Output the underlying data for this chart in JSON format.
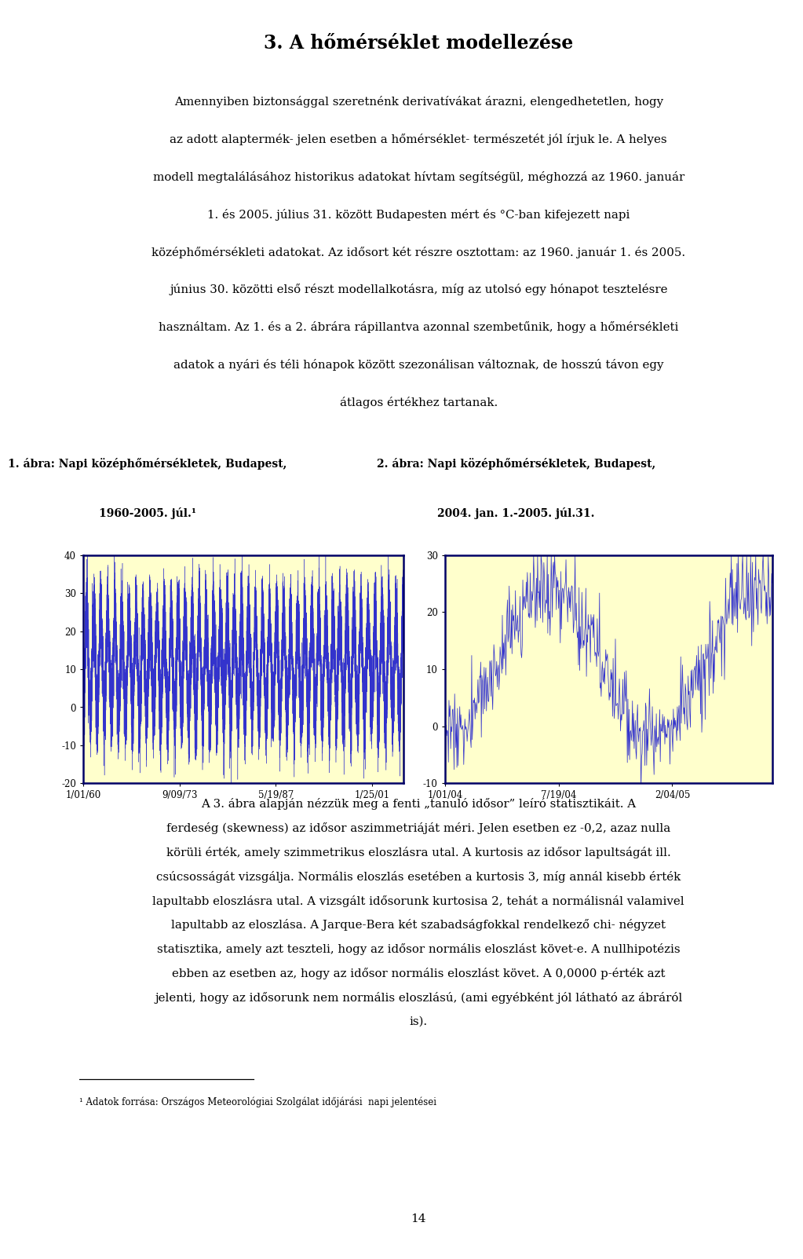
{
  "title": "3. A hőmérséklet modellezése",
  "fig1_title_line1": "1. ábra: Napi középhőmérsékletek, Budapest,",
  "fig1_title_line2": "1960-2005. júl.¹",
  "fig2_title_line1": "2. ábra: Napi középhőmérsékletek, Budapest,",
  "fig2_title_line2": "2004. jan. 1.-2005. júl.31.",
  "chart1_ylim": [
    -20,
    40
  ],
  "chart1_yticks": [
    -20,
    -10,
    0,
    10,
    20,
    30,
    40
  ],
  "chart1_xtick_labels": [
    "1/01/60",
    "9/09/73",
    "5/19/87",
    "1/25/01"
  ],
  "chart2_ylim": [
    -10,
    30
  ],
  "chart2_yticks": [
    -10,
    0,
    10,
    20,
    30
  ],
  "chart2_xtick_labels": [
    "1/01/04",
    "7/19/04",
    "2/04/05"
  ],
  "body1": [
    "Amennyiben biztonsággal szeretnénk derivatívákat árazni, elengedhetetlen, hogy",
    "az adott alaptermék- jelen esetben a hőmérséklet- természetét jól írjuk le. A helyes",
    "modell megtalálásához historikus adatokat hívtam segítségül, méghozzá az 1960. január",
    "1. és 2005. július 31. között Budapesten mért és °C-ban kifejezett napi",
    "középhőmérsékleti adatokat. Az idősort két részre osztottam: az 1960. január 1. és 2005.",
    "június 30. közötti első részt modellalkotásra, míg az utolsó egy hónapot tesztelésre",
    "használtam. Az 1. és a 2. ábrára rápillantva azonnal szembetűnik, hogy a hőmérsékleti",
    "adatok a nyári és téli hónapok között szezonálisan változnak, de hosszú távon egy",
    "átlagos értékhez tartanak."
  ],
  "body2": [
    "A 3. ábra alapján nézzük meg a fenti „tanuló idősor” leíró statisztikáit. A",
    "ferdeség (skewness) az idősor aszimmetriáját méri. Jelen esetben ez -0,2, azaz nulla",
    "körüli érték, amely szimmetrikus eloszlásra utal. A kurtosis az idősor lapultságát ill.",
    "csúcsosságát vizsgálja. Normális eloszlás esetében a kurtosis 3, míg annál kisebb érték",
    "lapultabb eloszlásra utal. A vizsgált idősorunk kurtosisa 2, tehát a normálisnál valamivel",
    "lapultabb az eloszlása. A Jarque-Bera két szabadságfokkal rendelkező chi- négyzet",
    "statisztika, amely azt teszteli, hogy az idősor normális eloszlást követ-e. A nullhipotézis",
    "ebben az esetben az, hogy az idősor normális eloszlást követ. A 0,0000 p-érték azt",
    "jelenti, hogy az idősorunk nem normális eloszlású, (ami egyébként jól látható az ábráról",
    "is)."
  ],
  "footnote": "¹ Adatok forrása: Országos Meteorológiai Szolgálat időjárási  napi jelentései",
  "page_number": "14",
  "chart_bg": "#ffffcc",
  "chart_border": "#000066",
  "line_color": "#3333cc",
  "text_color": "#000000"
}
